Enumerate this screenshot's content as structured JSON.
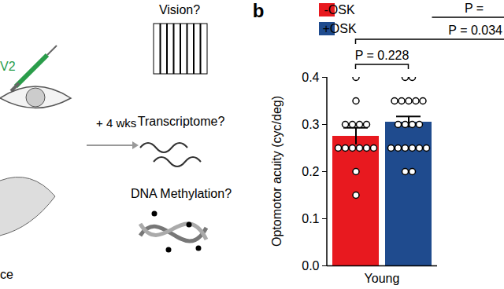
{
  "schematic": {
    "injection_label": "V2",
    "animal_label": "ce",
    "arrow_label": "+ 4 wks",
    "readouts": [
      "Vision?",
      "Transcriptome?",
      "DNA Methylation?"
    ]
  },
  "chart_data": {
    "type": "bar",
    "panel_label": "b",
    "categories": [
      "Young"
    ],
    "series": [
      {
        "name": "-OSK",
        "color": "#e8191f",
        "values": [
          0.275
        ],
        "errors": [
          0.018
        ],
        "points": [
          0.4,
          0.35,
          0.3,
          0.3,
          0.3,
          0.3,
          0.25,
          0.25,
          0.25,
          0.25,
          0.25,
          0.25,
          0.2,
          0.15
        ]
      },
      {
        "name": "+OSK",
        "color": "#1f4b8e",
        "values": [
          0.305
        ],
        "errors": [
          0.012
        ],
        "points": [
          0.4,
          0.4,
          0.35,
          0.35,
          0.35,
          0.35,
          0.35,
          0.3,
          0.3,
          0.3,
          0.3,
          0.25,
          0.25,
          0.25,
          0.25,
          0.25,
          0.25,
          0.2,
          0.2
        ]
      }
    ],
    "ylabel": "Optomotor acuity (cyc/deg)",
    "ylim": [
      0,
      0.4
    ],
    "yticks": [
      {
        "value": 0,
        "label": "0.0"
      },
      {
        "value": 0.1,
        "label": "0.1"
      },
      {
        "value": 0.2,
        "label": "0.2"
      },
      {
        "value": 0.3,
        "label": "0.3"
      },
      {
        "value": 0.4,
        "label": "0.4"
      }
    ],
    "legend": "top-left",
    "annotations": [
      {
        "text": "P = 0.228"
      },
      {
        "text": "P = 0.034"
      },
      {
        "text": "P ="
      }
    ]
  }
}
